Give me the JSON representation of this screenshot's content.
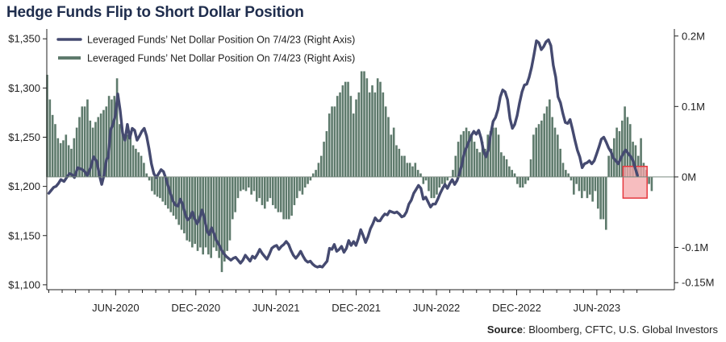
{
  "title": "Hedge Funds Flip to Short Dollar Position",
  "source_label": "Source",
  "source_text": ": Bloomberg, CFTC, U.S. Global Investors",
  "colors": {
    "line": "#454a70",
    "bars": "#5e7a6c",
    "highlight_fill": "#f4a7aa",
    "highlight_stroke": "#e5393f",
    "title": "#1f2d4d"
  },
  "chart_data": {
    "type": "line+bar",
    "x_ticks": [
      "JUN-2020",
      "DEC-2020",
      "JUN-2021",
      "DEC-2021",
      "JUN-2022",
      "DEC-2022",
      "JUN-2023"
    ],
    "left_axis": {
      "ticks": [
        "$1,350",
        "$1,300",
        "$1,250",
        "$1,200",
        "$1,150",
        "$1,100"
      ],
      "values": [
        1350,
        1300,
        1250,
        1200,
        1150,
        1100
      ],
      "ylim": [
        1095,
        1360
      ]
    },
    "right_axis": {
      "ticks": [
        "0.2M",
        "0.1M",
        "0M",
        "-0.1M",
        "-0.15M"
      ],
      "values": [
        0.2,
        0.1,
        0,
        -0.1,
        -0.15
      ],
      "ylim": [
        -0.16,
        0.21
      ]
    },
    "legend": [
      "Leveraged Funds’ Net Dollar Position On 7/4/23 (Right Axis)",
      "Leveraged Funds’ Net Dollar Position On 7/4/23 (Right Axis)"
    ],
    "line_series": {
      "axis": "left",
      "points": [
        [
          0,
          1193
        ],
        [
          0.03,
          1196
        ],
        [
          0.06,
          1199
        ],
        [
          0.09,
          1200
        ],
        [
          0.12,
          1203
        ],
        [
          0.15,
          1207
        ],
        [
          0.19,
          1205
        ],
        [
          0.23,
          1210
        ],
        [
          0.26,
          1213
        ],
        [
          0.29,
          1212
        ],
        [
          0.32,
          1209
        ],
        [
          0.36,
          1219
        ],
        [
          0.39,
          1218
        ],
        [
          0.42,
          1217
        ],
        [
          0.45,
          1215
        ],
        [
          0.48,
          1211
        ],
        [
          0.52,
          1219
        ],
        [
          0.56,
          1230
        ],
        [
          0.6,
          1225
        ],
        [
          0.63,
          1212
        ],
        [
          0.66,
          1202
        ],
        [
          0.69,
          1212
        ],
        [
          0.72,
          1228
        ],
        [
          0.74,
          1229
        ],
        [
          0.77,
          1257
        ],
        [
          0.8,
          1263
        ],
        [
          0.83,
          1272
        ],
        [
          0.86,
          1294
        ],
        [
          0.89,
          1277
        ],
        [
          0.92,
          1254
        ],
        [
          0.95,
          1247
        ],
        [
          0.98,
          1263
        ],
        [
          1.01,
          1249
        ],
        [
          1.04,
          1259
        ],
        [
          1.07,
          1257
        ],
        [
          1.1,
          1247
        ],
        [
          1.13,
          1251
        ],
        [
          1.16,
          1256
        ],
        [
          1.19,
          1259
        ],
        [
          1.22,
          1251
        ],
        [
          1.25,
          1238
        ],
        [
          1.28,
          1223
        ],
        [
          1.31,
          1213
        ],
        [
          1.34,
          1209
        ],
        [
          1.37,
          1213
        ],
        [
          1.4,
          1217
        ],
        [
          1.43,
          1215
        ],
        [
          1.46,
          1208
        ],
        [
          1.49,
          1200
        ],
        [
          1.52,
          1192
        ],
        [
          1.55,
          1185
        ],
        [
          1.58,
          1181
        ],
        [
          1.61,
          1180
        ],
        [
          1.64,
          1187
        ],
        [
          1.67,
          1182
        ],
        [
          1.7,
          1172
        ],
        [
          1.73,
          1166
        ],
        [
          1.76,
          1168
        ],
        [
          1.79,
          1174
        ],
        [
          1.82,
          1167
        ],
        [
          1.85,
          1162
        ],
        [
          1.88,
          1167
        ],
        [
          1.91,
          1176
        ],
        [
          1.94,
          1168
        ],
        [
          1.97,
          1155
        ],
        [
          2.0,
          1151
        ],
        [
          2.03,
          1158
        ],
        [
          2.06,
          1152
        ],
        [
          2.09,
          1145
        ],
        [
          2.12,
          1141
        ],
        [
          2.15,
          1136
        ],
        [
          2.18,
          1132
        ],
        [
          2.21,
          1129
        ],
        [
          2.24,
          1127
        ],
        [
          2.27,
          1125
        ],
        [
          2.3,
          1127
        ],
        [
          2.33,
          1128
        ],
        [
          2.36,
          1125
        ],
        [
          2.39,
          1122
        ],
        [
          2.42,
          1125
        ],
        [
          2.45,
          1130
        ],
        [
          2.48,
          1127
        ],
        [
          2.51,
          1124
        ],
        [
          2.54,
          1129
        ],
        [
          2.57,
          1127
        ],
        [
          2.6,
          1131
        ],
        [
          2.63,
          1136
        ],
        [
          2.66,
          1132
        ],
        [
          2.69,
          1129
        ],
        [
          2.72,
          1126
        ],
        [
          2.75,
          1131
        ],
        [
          2.78,
          1137
        ],
        [
          2.81,
          1139
        ],
        [
          2.84,
          1140
        ],
        [
          2.87,
          1136
        ],
        [
          2.9,
          1139
        ],
        [
          2.93,
          1141
        ],
        [
          2.96,
          1144
        ],
        [
          2.99,
          1141
        ],
        [
          3.02,
          1135
        ],
        [
          3.05,
          1130
        ],
        [
          3.08,
          1127
        ],
        [
          3.11,
          1130
        ],
        [
          3.14,
          1134
        ],
        [
          3.17,
          1129
        ],
        [
          3.2,
          1125
        ],
        [
          3.23,
          1123
        ],
        [
          3.26,
          1124
        ],
        [
          3.29,
          1121
        ],
        [
          3.32,
          1119
        ],
        [
          3.35,
          1118
        ],
        [
          3.38,
          1119
        ],
        [
          3.41,
          1118
        ],
        [
          3.44,
          1121
        ],
        [
          3.47,
          1124
        ],
        [
          3.5,
          1137
        ],
        [
          3.53,
          1136
        ],
        [
          3.56,
          1141
        ],
        [
          3.59,
          1134
        ],
        [
          3.62,
          1136
        ],
        [
          3.65,
          1139
        ],
        [
          3.68,
          1133
        ],
        [
          3.71,
          1137
        ],
        [
          3.74,
          1145
        ],
        [
          3.77,
          1140
        ],
        [
          3.8,
          1144
        ],
        [
          3.83,
          1140
        ],
        [
          3.86,
          1147
        ],
        [
          3.89,
          1156
        ],
        [
          3.92,
          1150
        ],
        [
          3.95,
          1143
        ],
        [
          3.98,
          1149
        ],
        [
          4.01,
          1157
        ],
        [
          4.04,
          1162
        ],
        [
          4.07,
          1168
        ],
        [
          4.1,
          1165
        ],
        [
          4.13,
          1165
        ],
        [
          4.16,
          1169
        ],
        [
          4.19,
          1172
        ],
        [
          4.22,
          1171
        ],
        [
          4.25,
          1175
        ],
        [
          4.28,
          1174
        ],
        [
          4.31,
          1173
        ],
        [
          4.34,
          1174
        ],
        [
          4.37,
          1172
        ],
        [
          4.4,
          1169
        ],
        [
          4.43,
          1170
        ],
        [
          4.46,
          1174
        ],
        [
          4.49,
          1182
        ],
        [
          4.52,
          1186
        ],
        [
          4.55,
          1193
        ],
        [
          4.58,
          1197
        ],
        [
          4.61,
          1201
        ],
        [
          4.64,
          1198
        ],
        [
          4.67,
          1187
        ],
        [
          4.7,
          1189
        ],
        [
          4.73,
          1184
        ],
        [
          4.76,
          1179
        ],
        [
          4.79,
          1182
        ],
        [
          4.82,
          1182
        ],
        [
          4.85,
          1187
        ],
        [
          4.88,
          1193
        ],
        [
          4.91,
          1198
        ],
        [
          4.94,
          1202
        ],
        [
          4.97,
          1198
        ],
        [
          5.0,
          1203
        ],
        [
          5.03,
          1207
        ],
        [
          5.06,
          1202
        ],
        [
          5.09,
          1206
        ],
        [
          5.12,
          1213
        ],
        [
          5.15,
          1222
        ],
        [
          5.18,
          1234
        ],
        [
          5.21,
          1240
        ],
        [
          5.24,
          1246
        ],
        [
          5.27,
          1252
        ],
        [
          5.3,
          1256
        ],
        [
          5.33,
          1253
        ],
        [
          5.36,
          1257
        ],
        [
          5.39,
          1249
        ],
        [
          5.42,
          1236
        ],
        [
          5.45,
          1230
        ],
        [
          5.48,
          1237
        ],
        [
          5.51,
          1253
        ],
        [
          5.54,
          1266
        ],
        [
          5.57,
          1270
        ],
        [
          5.6,
          1278
        ],
        [
          5.63,
          1291
        ],
        [
          5.66,
          1298
        ],
        [
          5.69,
          1296
        ],
        [
          5.72,
          1288
        ],
        [
          5.75,
          1269
        ],
        [
          5.78,
          1259
        ],
        [
          5.81,
          1263
        ],
        [
          5.84,
          1272
        ],
        [
          5.87,
          1285
        ],
        [
          5.9,
          1296
        ],
        [
          5.93,
          1303
        ],
        [
          5.96,
          1304
        ],
        [
          5.99,
          1311
        ],
        [
          6.02,
          1321
        ],
        [
          6.05,
          1334
        ],
        [
          6.08,
          1348
        ],
        [
          6.11,
          1346
        ],
        [
          6.14,
          1339
        ],
        [
          6.17,
          1342
        ],
        [
          6.2,
          1347
        ],
        [
          6.23,
          1349
        ],
        [
          6.26,
          1343
        ],
        [
          6.29,
          1323
        ],
        [
          6.32,
          1311
        ],
        [
          6.35,
          1291
        ],
        [
          6.38,
          1285
        ],
        [
          6.41,
          1274
        ],
        [
          6.44,
          1265
        ],
        [
          6.47,
          1264
        ],
        [
          6.5,
          1268
        ],
        [
          6.53,
          1258
        ],
        [
          6.56,
          1247
        ],
        [
          6.59,
          1237
        ],
        [
          6.62,
          1230
        ],
        [
          6.65,
          1219
        ],
        [
          6.68,
          1223
        ],
        [
          6.71,
          1224
        ],
        [
          6.74,
          1226
        ],
        [
          6.77,
          1223
        ],
        [
          6.8,
          1226
        ],
        [
          6.83,
          1233
        ],
        [
          6.86,
          1240
        ],
        [
          6.89,
          1248
        ],
        [
          6.92,
          1250
        ],
        [
          6.95,
          1245
        ],
        [
          6.98,
          1239
        ],
        [
          7.01,
          1235
        ],
        [
          7.04,
          1229
        ],
        [
          7.07,
          1226
        ],
        [
          7.1,
          1223
        ],
        [
          7.13,
          1228
        ],
        [
          7.16,
          1233
        ],
        [
          7.19,
          1237
        ],
        [
          7.22,
          1234
        ],
        [
          7.25,
          1231
        ],
        [
          7.28,
          1227
        ],
        [
          7.31,
          1219
        ],
        [
          7.34,
          1211
        ]
      ]
    },
    "bar_series": {
      "axis": "right",
      "x_start": -0.02,
      "x_step": 0.0335,
      "values": [
        0.145,
        0.11,
        0.088,
        0.075,
        0.055,
        0.048,
        0.052,
        0.06,
        0.045,
        0.04,
        0.055,
        0.07,
        0.085,
        0.1,
        0.1,
        0.11,
        0.08,
        0.07,
        0.078,
        0.085,
        0.09,
        0.095,
        0.1,
        0.115,
        0.11,
        0.115,
        0.14,
        0.075,
        0.065,
        0.06,
        0.06,
        0.06,
        0.045,
        0.04,
        0.035,
        0.03,
        0.02,
        0.005,
        -0.005,
        -0.02,
        -0.025,
        -0.028,
        -0.03,
        -0.035,
        -0.04,
        -0.045,
        -0.05,
        -0.055,
        -0.06,
        -0.068,
        -0.075,
        -0.08,
        -0.09,
        -0.092,
        -0.1,
        -0.095,
        -0.105,
        -0.1,
        -0.11,
        -0.1,
        -0.11,
        -0.115,
        -0.1,
        -0.105,
        -0.115,
        -0.135,
        -0.12,
        -0.105,
        -0.09,
        -0.06,
        -0.05,
        -0.03,
        -0.02,
        -0.018,
        -0.02,
        -0.015,
        -0.025,
        -0.02,
        -0.035,
        -0.03,
        -0.04,
        -0.045,
        -0.035,
        -0.03,
        -0.04,
        -0.045,
        -0.05,
        -0.05,
        -0.06,
        -0.06,
        -0.06,
        -0.055,
        -0.04,
        -0.03,
        -0.02,
        -0.025,
        -0.015,
        -0.01,
        -0.005,
        0.005,
        0.01,
        0.02,
        0.03,
        0.05,
        0.065,
        0.09,
        0.1,
        0.1,
        0.115,
        0.12,
        0.13,
        0.135,
        0.135,
        0.115,
        0.09,
        0.11,
        0.12,
        0.15,
        0.15,
        0.14,
        0.12,
        0.13,
        0.12,
        0.14,
        0.135,
        0.12,
        0.1,
        0.085,
        0.06,
        0.07,
        0.045,
        0.04,
        0.03,
        0.03,
        0.02,
        0.02,
        0.015,
        0.02,
        0.01,
        0.005,
        -0.01,
        -0.005,
        -0.02,
        -0.03,
        -0.03,
        -0.025,
        -0.015,
        -0.01,
        -0.01,
        -0.005,
        0.0,
        0.01,
        0.03,
        0.05,
        0.06,
        0.065,
        0.07,
        0.065,
        0.06,
        0.05,
        0.04,
        0.035,
        0.05,
        0.04,
        0.06,
        0.065,
        0.07,
        0.07,
        0.06,
        0.035,
        0.03,
        0.025,
        0.015,
        0.01,
        0.005,
        -0.01,
        -0.015,
        -0.015,
        -0.01,
        -0.005,
        0.025,
        0.06,
        0.07,
        0.075,
        0.08,
        0.09,
        0.1,
        0.11,
        0.085,
        0.07,
        0.06,
        0.04,
        0.02,
        0.01,
        0.005,
        -0.005,
        -0.025,
        -0.01,
        -0.02,
        -0.03,
        -0.02,
        -0.03,
        -0.025,
        -0.035,
        -0.02,
        -0.045,
        -0.06,
        -0.06,
        -0.075,
        0.03,
        0.04,
        0.055,
        0.07,
        0.065,
        0.08,
        0.1,
        0.085,
        0.075,
        0.05,
        0.045,
        0.03,
        0.055,
        0.02,
        0.01,
        -0.01,
        -0.02
      ]
    }
  }
}
